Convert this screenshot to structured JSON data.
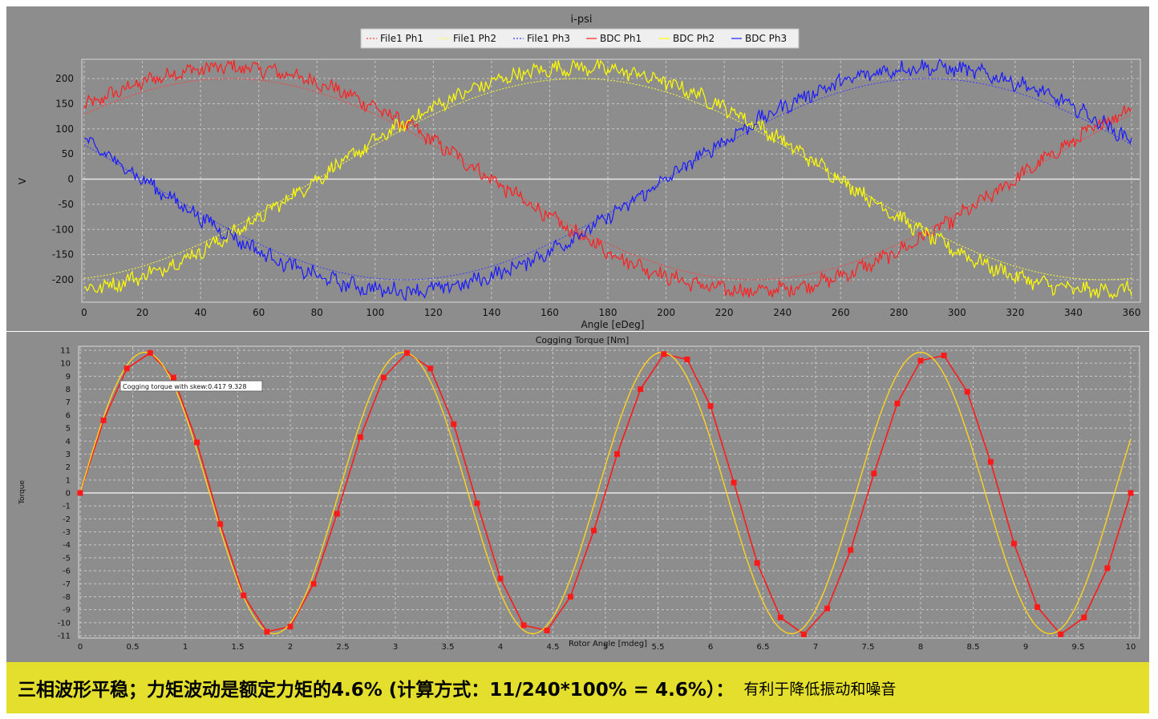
{
  "chart_data": [
    {
      "type": "line",
      "title": "i-psi",
      "xlabel": "Angle [eDeg]",
      "ylabel": "V",
      "xlim": [
        0,
        360
      ],
      "ylim": [
        -235,
        235
      ],
      "xticks": [
        0,
        20,
        40,
        60,
        80,
        100,
        120,
        140,
        160,
        180,
        200,
        220,
        240,
        260,
        280,
        300,
        320,
        340,
        360
      ],
      "yticks": [
        -200,
        -150,
        -100,
        -50,
        0,
        50,
        100,
        150,
        200
      ],
      "grid": true,
      "legend_position": "top-center",
      "series": [
        {
          "name": "File1 Ph1",
          "style": "dashed",
          "color": "#ff3b3b",
          "amplitude": 200,
          "phase_deg": 50
        },
        {
          "name": "File1 Ph2",
          "style": "dashed",
          "color": "#ffff33",
          "amplitude": 200,
          "phase_deg": 170
        },
        {
          "name": "File1 Ph3",
          "style": "dashed",
          "color": "#3b3bff",
          "amplitude": 200,
          "phase_deg": 290
        },
        {
          "name": "BDC Ph1",
          "style": "solid-noisy",
          "color": "#ff2020",
          "amplitude": 222,
          "phase_deg": 50
        },
        {
          "name": "BDC Ph2",
          "style": "solid-noisy",
          "color": "#ffff00",
          "amplitude": 222,
          "phase_deg": 170
        },
        {
          "name": "BDC Ph3",
          "style": "solid-noisy",
          "color": "#1a1aff",
          "amplitude": 222,
          "phase_deg": 290
        }
      ]
    },
    {
      "type": "line",
      "title": "Cogging Torque [Nm]",
      "xlabel": "Rotor Angle [mdeg]",
      "ylabel": "Torque",
      "xlim": [
        0,
        10
      ],
      "ylim": [
        -11,
        11
      ],
      "xticks": [
        "0",
        "0.5",
        "1",
        "1.5",
        "2",
        "2.5",
        "3",
        "3.5",
        "4",
        "4.5",
        "5",
        "5.5",
        "6",
        "6.5",
        "7",
        "7.5",
        "8",
        "8.5",
        "9",
        "9.5",
        "10"
      ],
      "yticks": [
        -11,
        -10,
        -9,
        -8,
        -7,
        -6,
        -5,
        -4,
        -3,
        -2,
        -1,
        0,
        1,
        2,
        3,
        4,
        5,
        6,
        7,
        8,
        9,
        10,
        11
      ],
      "grid": true,
      "annotation": "Cogging torque with skew:0.417 9.328",
      "series": [
        {
          "name": "",
          "color": "#ff1a1a",
          "markers": "square",
          "x": [
            0,
            0.2222,
            0.4444,
            0.6667,
            0.8889,
            1.1111,
            1.3333,
            1.5556,
            1.7778,
            2.0,
            2.2222,
            2.4444,
            2.6667,
            2.8889,
            3.1111,
            3.3333,
            3.5556,
            3.7778,
            4.0,
            4.2222,
            4.4444,
            4.6667,
            4.8889,
            5.1111,
            5.3333,
            5.5556,
            5.7778,
            6.0,
            6.2222,
            6.4444,
            6.6667,
            6.8889,
            7.1111,
            7.3333,
            7.5556,
            7.7778,
            8.0,
            8.2222,
            8.4444,
            8.6667,
            8.8889,
            9.1111,
            9.3333,
            9.5556,
            9.7778,
            10.0
          ],
          "values": [
            0,
            5.6,
            9.6,
            10.8,
            8.9,
            3.9,
            -2.4,
            -7.9,
            -10.7,
            -10.3,
            -7.0,
            -1.6,
            4.3,
            8.9,
            10.8,
            9.6,
            5.3,
            -0.8,
            -6.6,
            -10.2,
            -10.6,
            -8.0,
            -2.9,
            3.0,
            8.0,
            10.7,
            10.3,
            6.7,
            0.8,
            -5.4,
            -9.6,
            -10.9,
            -8.9,
            -4.4,
            1.5,
            6.9,
            10.2,
            10.6,
            7.8,
            2.4,
            -3.9,
            -8.8,
            -10.9,
            -9.6,
            -5.8,
            0
          ]
        },
        {
          "name": "",
          "color": "#ffd21e",
          "style": "smooth-fit",
          "amplitude": 10.85,
          "period": 2.4615
        }
      ]
    }
  ],
  "footer": {
    "main_text": "三相波形平稳；力矩波动是额定力矩的4.6% (计算方式：11/240*100% = 4.6%）：",
    "note_text": "有利于降低振动和噪音"
  }
}
